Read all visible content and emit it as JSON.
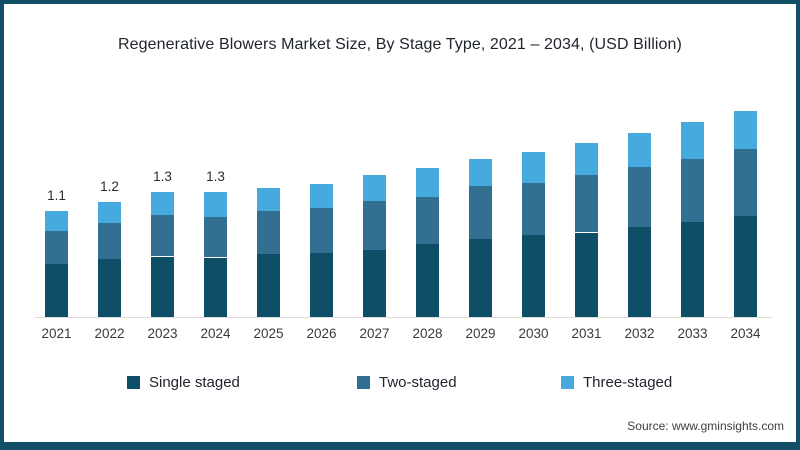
{
  "frame": {
    "border_color": "#124e68",
    "background": "#ffffff"
  },
  "title": "Regenerative Blowers Market Size, By Stage Type, 2021 – 2034, (USD Billion)",
  "source": "Source: www.gminsights.com",
  "chart_data": {
    "type": "bar",
    "stacked": true,
    "title": "Regenerative Blowers Market Size, By Stage Type, 2021 – 2034, (USD Billion)",
    "xlabel": "",
    "ylabel": "USD Billion",
    "ylim": [
      0,
      2.3
    ],
    "grid": false,
    "legend_position": "bottom",
    "categories": [
      "2021",
      "2022",
      "2023",
      "2024",
      "2025",
      "2026",
      "2027",
      "2028",
      "2029",
      "2030",
      "2031",
      "2032",
      "2033",
      "2034"
    ],
    "series": [
      {
        "name": "Single staged",
        "color": "#0e4e66",
        "values": [
          0.55,
          0.6,
          0.63,
          0.62,
          0.66,
          0.67,
          0.7,
          0.76,
          0.81,
          0.85,
          0.88,
          0.94,
          0.99,
          1.05
        ]
      },
      {
        "name": "Two-staged",
        "color": "#326f90",
        "values": [
          0.35,
          0.38,
          0.43,
          0.42,
          0.44,
          0.47,
          0.51,
          0.49,
          0.55,
          0.55,
          0.6,
          0.62,
          0.66,
          0.7
        ]
      },
      {
        "name": "Three-staged",
        "color": "#47aadf",
        "values": [
          0.2,
          0.22,
          0.24,
          0.26,
          0.24,
          0.25,
          0.27,
          0.3,
          0.29,
          0.32,
          0.33,
          0.36,
          0.38,
          0.4
        ]
      }
    ],
    "value_labels": [
      "1.1",
      "1.2",
      "1.3",
      "1.3",
      "",
      "",
      "",
      "",
      "",
      "",
      "",
      "",
      "",
      ""
    ],
    "axis_line_color": "#dcdcdc"
  }
}
